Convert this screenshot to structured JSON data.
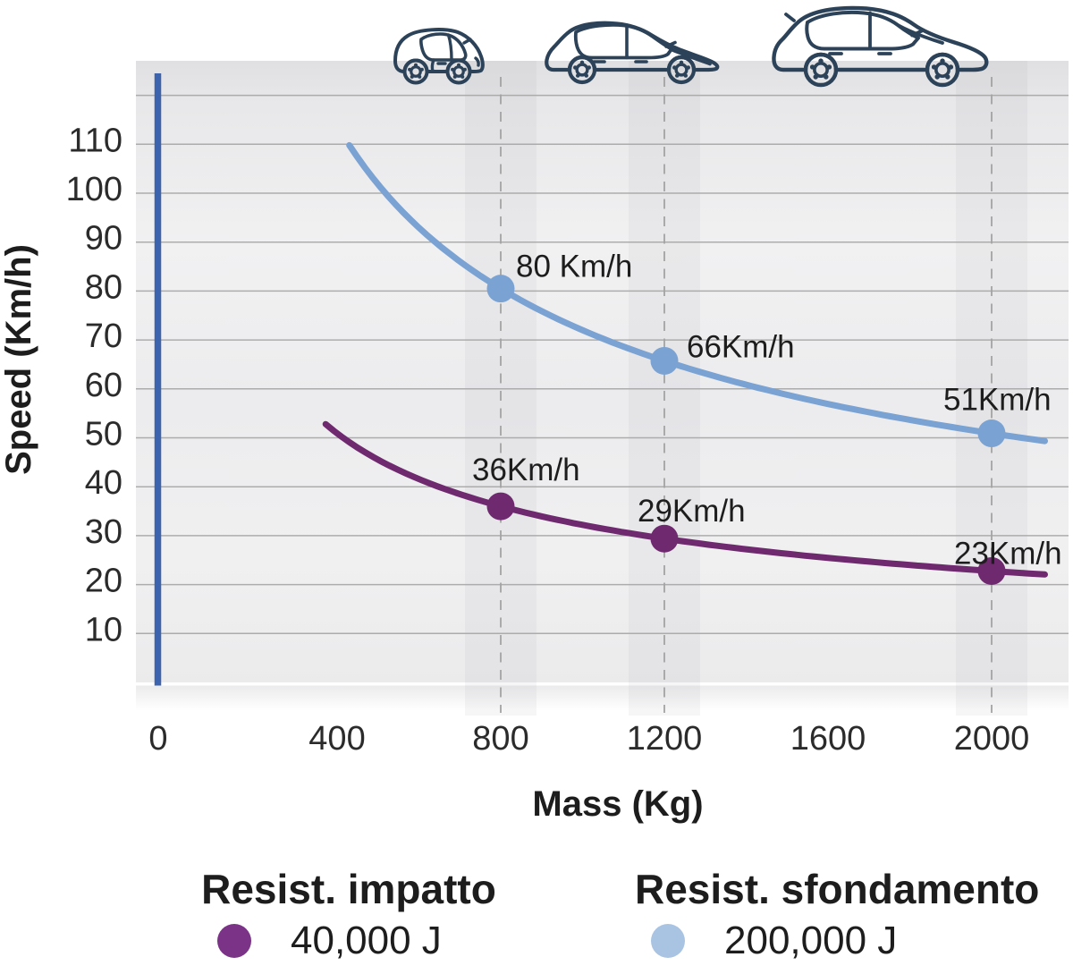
{
  "chart_data": {
    "type": "line",
    "xlabel": "Mass (Kg)",
    "ylabel": "Speed (Km/h)",
    "xlim": [
      0,
      2185
    ],
    "ylim": [
      0,
      128
    ],
    "x_ticks": [
      0,
      400,
      800,
      1200,
      1600,
      2000
    ],
    "y_ticks": [
      10,
      20,
      30,
      40,
      50,
      60,
      70,
      80,
      90,
      100,
      110
    ],
    "y_gridlines": [
      10,
      20,
      30,
      40,
      50,
      60,
      70,
      80,
      90,
      100,
      110,
      120
    ],
    "dashed_guides_mass": [
      800,
      1200,
      2000
    ],
    "grid": "horizontal",
    "legend_position": "bottom",
    "series": [
      {
        "name": "Resist. impatto",
        "energy_joules": 40000,
        "energy_label": "40,000 J",
        "color": "#6f2a6f",
        "curve_mass_range_kg": [
          372,
          2130
        ],
        "points": [
          {
            "mass_kg": 800,
            "speed_kmh": 36,
            "label": "36Km/h"
          },
          {
            "mass_kg": 1200,
            "speed_kmh": 29,
            "label": "29Km/h"
          },
          {
            "mass_kg": 2000,
            "speed_kmh": 23,
            "label": "23Km/h"
          }
        ]
      },
      {
        "name": "Resist. sfondamento",
        "energy_joules": 200000,
        "energy_label": "200,000 J",
        "color": "#7aa2d2",
        "curve_mass_range_kg": [
          430,
          2130
        ],
        "points": [
          {
            "mass_kg": 800,
            "speed_kmh": 80,
            "label": "80 Km/h"
          },
          {
            "mass_kg": 1200,
            "speed_kmh": 66,
            "label": "66Km/h"
          },
          {
            "mass_kg": 2000,
            "speed_kmh": 51,
            "label": "51Km/h"
          }
        ]
      }
    ]
  },
  "icons": [
    {
      "name": "small-city-car-icon",
      "guide_mass_kg": 800
    },
    {
      "name": "hatchback-car-icon",
      "guide_mass_kg": 1200
    },
    {
      "name": "suv-car-icon",
      "guide_mass_kg": 2000
    }
  ],
  "legend": {
    "items": [
      {
        "title": "Resist. impatto",
        "value": "40,000 J",
        "dot_color": "#7b3387"
      },
      {
        "title": "Resist. sfondamento",
        "value": "200,000 J",
        "dot_color": "#a9c3e3"
      }
    ]
  },
  "colors": {
    "axis": "#3c63ae",
    "axis_fade": "#8ea6d6",
    "grid": "#a6a6a6",
    "dashed": "#a3a3a3",
    "car_outline": "#2c4258",
    "text": "#1d1d1d",
    "tick_text": "#2b2b2b",
    "plot_bg_top": "#e2e2e4",
    "plot_bg_mid": "#f2f2f2"
  }
}
